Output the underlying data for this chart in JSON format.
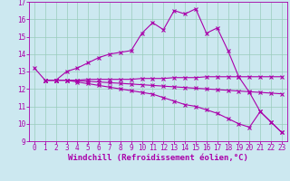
{
  "xlabel": "Windchill (Refroidissement éolien,°C)",
  "bg_color": "#cce8f0",
  "line_color": "#aa00aa",
  "grid_color": "#99ccbb",
  "xlim": [
    -0.5,
    23.5
  ],
  "ylim": [
    9,
    17
  ],
  "yticks": [
    9,
    10,
    11,
    12,
    13,
    14,
    15,
    16,
    17
  ],
  "xticks": [
    0,
    1,
    2,
    3,
    4,
    5,
    6,
    7,
    8,
    9,
    10,
    11,
    12,
    13,
    14,
    15,
    16,
    17,
    18,
    19,
    20,
    21,
    22,
    23
  ],
  "line1_x": [
    0,
    1,
    2,
    3,
    4,
    5,
    6,
    7,
    8,
    9,
    10,
    11,
    12,
    13,
    14,
    15,
    16,
    17,
    18,
    19,
    20,
    21,
    22,
    23
  ],
  "line1_y": [
    13.2,
    12.5,
    12.5,
    13.0,
    13.2,
    13.5,
    13.8,
    14.0,
    14.1,
    14.2,
    15.2,
    15.8,
    15.4,
    16.5,
    16.3,
    16.6,
    15.2,
    15.5,
    14.2,
    12.7,
    11.8,
    10.7,
    10.1,
    9.5
  ],
  "line2_x": [
    1,
    2,
    3,
    4,
    5,
    6,
    7,
    8,
    9,
    10,
    11,
    12,
    13,
    14,
    15,
    16,
    17,
    18,
    19,
    20,
    21,
    22,
    23
  ],
  "line2_y": [
    12.5,
    12.5,
    12.5,
    12.5,
    12.55,
    12.55,
    12.55,
    12.55,
    12.55,
    12.6,
    12.6,
    12.6,
    12.65,
    12.65,
    12.65,
    12.7,
    12.7,
    12.7,
    12.7,
    12.7,
    12.7,
    12.7,
    12.7
  ],
  "line3_x": [
    1,
    2,
    3,
    4,
    5,
    6,
    7,
    8,
    9,
    10,
    11,
    12,
    13,
    14,
    15,
    16,
    17,
    18,
    19,
    20,
    21,
    22,
    23
  ],
  "line3_y": [
    12.5,
    12.5,
    12.5,
    12.48,
    12.44,
    12.4,
    12.36,
    12.32,
    12.28,
    12.24,
    12.2,
    12.16,
    12.12,
    12.08,
    12.04,
    12.0,
    11.96,
    11.92,
    11.88,
    11.84,
    11.8,
    11.76,
    11.72
  ],
  "line4_x": [
    1,
    2,
    3,
    4,
    5,
    6,
    7,
    8,
    9,
    10,
    11,
    12,
    13,
    14,
    15,
    16,
    17,
    18,
    19,
    20,
    21,
    22,
    23
  ],
  "line4_y": [
    12.5,
    12.5,
    12.5,
    12.4,
    12.3,
    12.2,
    12.1,
    12.0,
    11.9,
    11.8,
    11.7,
    11.5,
    11.3,
    11.1,
    11.0,
    10.8,
    10.6,
    10.3,
    10.0,
    9.8,
    10.7,
    10.1,
    9.5
  ],
  "tick_fontsize": 5.5,
  "label_fontsize": 6.5
}
